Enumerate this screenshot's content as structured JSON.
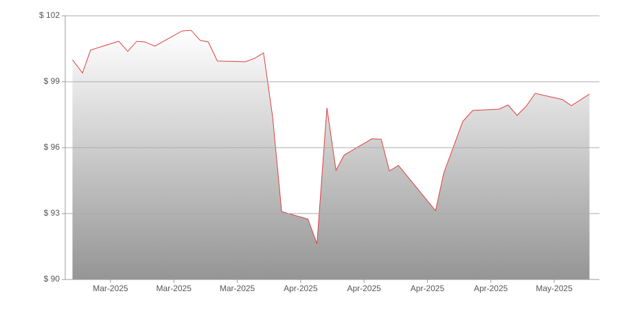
{
  "chart_data": {
    "type": "area",
    "x": [
      0.8,
      1.9,
      2.8,
      5.9,
      6.9,
      7.9,
      8.8,
      9.9,
      12.9,
      13.9,
      14.9,
      15.8,
      16.8,
      19.9,
      20.9,
      21.9,
      22.9,
      23.9,
      26.8,
      27.8,
      28.9,
      29.9,
      30.8,
      33.9,
      34.9,
      35.8,
      36.8,
      40.9,
      41.8,
      43.9,
      45.0,
      47.9,
      48.9,
      49.9,
      50.9,
      51.9,
      54.9,
      55.9,
      57.9
    ],
    "series": [
      {
        "color": "#e03c3c",
        "values": [
          100.0,
          99.4,
          100.44,
          100.84,
          100.38,
          100.84,
          100.81,
          100.62,
          101.31,
          101.34,
          100.88,
          100.81,
          99.94,
          99.91,
          100.06,
          100.31,
          97.41,
          93.09,
          92.75,
          91.63,
          97.81,
          94.97,
          95.66,
          96.41,
          96.38,
          94.94,
          95.19,
          93.13,
          94.84,
          97.19,
          97.69,
          97.75,
          97.94,
          97.47,
          97.88,
          98.47,
          98.19,
          97.91,
          98.44
        ]
      }
    ],
    "xlim": [
      0,
      59
    ],
    "xticks": [
      {
        "value": 5,
        "label": "Mar-2025"
      },
      {
        "value": 12,
        "label": "Mar-2025"
      },
      {
        "value": 19,
        "label": "Mar-2025"
      },
      {
        "value": 26,
        "label": "Apr-2025"
      },
      {
        "value": 33,
        "label": "Apr-2025"
      },
      {
        "value": 40,
        "label": "Apr-2025"
      },
      {
        "value": 47,
        "label": "Apr-2025"
      },
      {
        "value": 54,
        "label": "May-2025"
      }
    ],
    "ylim": [
      90,
      102
    ],
    "yticks": [
      {
        "value": 90,
        "label": "$ 90"
      },
      {
        "value": 93,
        "label": "$ 93"
      },
      {
        "value": 96,
        "label": "$ 96"
      },
      {
        "value": 99,
        "label": "$ 99"
      },
      {
        "value": 102,
        "label": "$ 102"
      }
    ],
    "grid": true
  }
}
